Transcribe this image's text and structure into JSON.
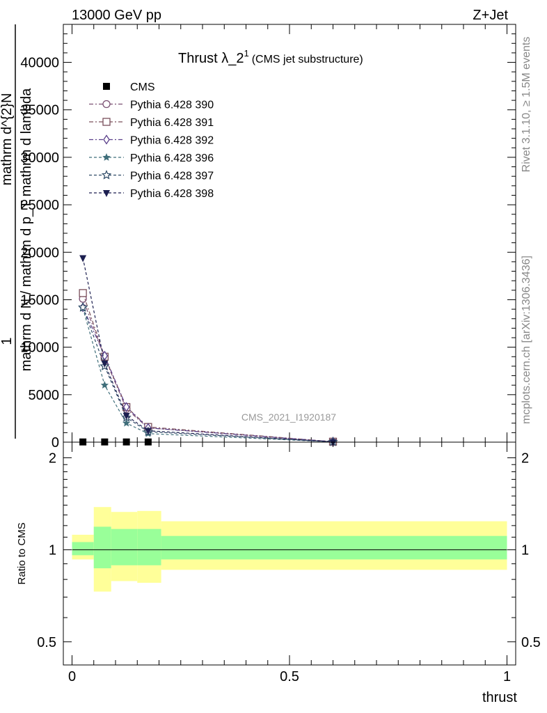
{
  "header": {
    "left": "13000 GeV pp",
    "right": "Z+Jet"
  },
  "side": {
    "rivet": "Rivet 3.1.10, ≥ 1.5M events",
    "mcplots": "mcplots.cern.ch [arXiv:1306.3436]"
  },
  "watermark": "CMS_2021_I1920187",
  "title": {
    "main": "Thrust λ_2",
    "sup": "1",
    "sub": "(CMS jet substructure)"
  },
  "ylabel": {
    "numerator": "1",
    "denominator": "mathrm d N",
    "rest": "mathrm d N / mathrm d p",
    "layer1": "mathrm d p",
    "layer2": "mathrm d lambda"
  },
  "ylabel_main_lines": [
    "mathrm d^{2}N",
    "1",
    "mathrm d N / mathrm d p_T mathrm d lambda"
  ],
  "ratio_ylabel": "Ratio to CMS",
  "xlabel": "thrust",
  "chart_data": {
    "type": "line",
    "x": [
      0.025,
      0.075,
      0.125,
      0.175,
      0.6
    ],
    "xlim": [
      -0.02,
      1.02
    ],
    "ylim": [
      0,
      44000
    ],
    "yticks": [
      0,
      5000,
      10000,
      15000,
      20000,
      25000,
      30000,
      35000,
      40000
    ],
    "yticklabels": [
      "0",
      "5000",
      "10000",
      "15000",
      "20000",
      "25000",
      "30000",
      "35000",
      "40000"
    ],
    "xticks": [
      0,
      0.5,
      1
    ],
    "xticklabels": [
      "0",
      "0.5",
      "1"
    ],
    "series": [
      {
        "name": "CMS",
        "color": "#000000",
        "marker": "filled-square",
        "dash": "none",
        "x": [
          0.025,
          0.075,
          0.125,
          0.175
        ],
        "values": [
          20,
          20,
          20,
          20
        ]
      },
      {
        "name": "Pythia 6.428 390",
        "color": "#7a4f72",
        "marker": "open-circle",
        "dash": "6,3,2,3",
        "values": [
          15100,
          8900,
          3500,
          1500,
          50
        ]
      },
      {
        "name": "Pythia 6.428 391",
        "color": "#7a4f5a",
        "marker": "open-square",
        "dash": "6,3,2,3",
        "values": [
          15700,
          9000,
          3700,
          1600,
          50
        ]
      },
      {
        "name": "Pythia 6.428 392",
        "color": "#5a3f8a",
        "marker": "open-diamond",
        "dash": "6,3,2,3",
        "values": [
          14200,
          9100,
          3700,
          1500,
          50
        ]
      },
      {
        "name": "Pythia 6.428 396",
        "color": "#3f6e7a",
        "marker": "filled-star",
        "dash": "4,3",
        "values": [
          14100,
          6000,
          2000,
          900,
          30
        ]
      },
      {
        "name": "Pythia 6.428 397",
        "color": "#2e4a66",
        "marker": "open-star",
        "dash": "4,3",
        "values": [
          14200,
          8000,
          2600,
          1100,
          30
        ]
      },
      {
        "name": "Pythia 6.428 398",
        "color": "#1c1f50",
        "marker": "filled-triangle-down",
        "dash": "4,3",
        "values": [
          19400,
          8300,
          2800,
          1200,
          30
        ]
      }
    ],
    "ratio": {
      "ylim": [
        0.42,
        2.25
      ],
      "yticks": [
        0.5,
        1,
        2
      ],
      "yticklabels": [
        "0.5",
        "1",
        "2"
      ],
      "bins": [
        {
          "lo": 0.0,
          "hi": 0.05,
          "stat_lo": 0.96,
          "stat_hi": 1.06,
          "tot_lo": 0.93,
          "tot_hi": 1.12
        },
        {
          "lo": 0.05,
          "hi": 0.09,
          "stat_lo": 0.87,
          "stat_hi": 1.19,
          "tot_lo": 0.73,
          "tot_hi": 1.38
        },
        {
          "lo": 0.09,
          "hi": 0.15,
          "stat_lo": 0.89,
          "stat_hi": 1.17,
          "tot_lo": 0.79,
          "tot_hi": 1.33
        },
        {
          "lo": 0.15,
          "hi": 0.205,
          "stat_lo": 0.89,
          "stat_hi": 1.17,
          "tot_lo": 0.78,
          "tot_hi": 1.34
        },
        {
          "lo": 0.205,
          "hi": 1.0,
          "stat_lo": 0.93,
          "stat_hi": 1.11,
          "tot_lo": 0.86,
          "tot_hi": 1.24
        }
      ],
      "stat_color": "#99ff99",
      "tot_color": "#ffff99"
    }
  }
}
